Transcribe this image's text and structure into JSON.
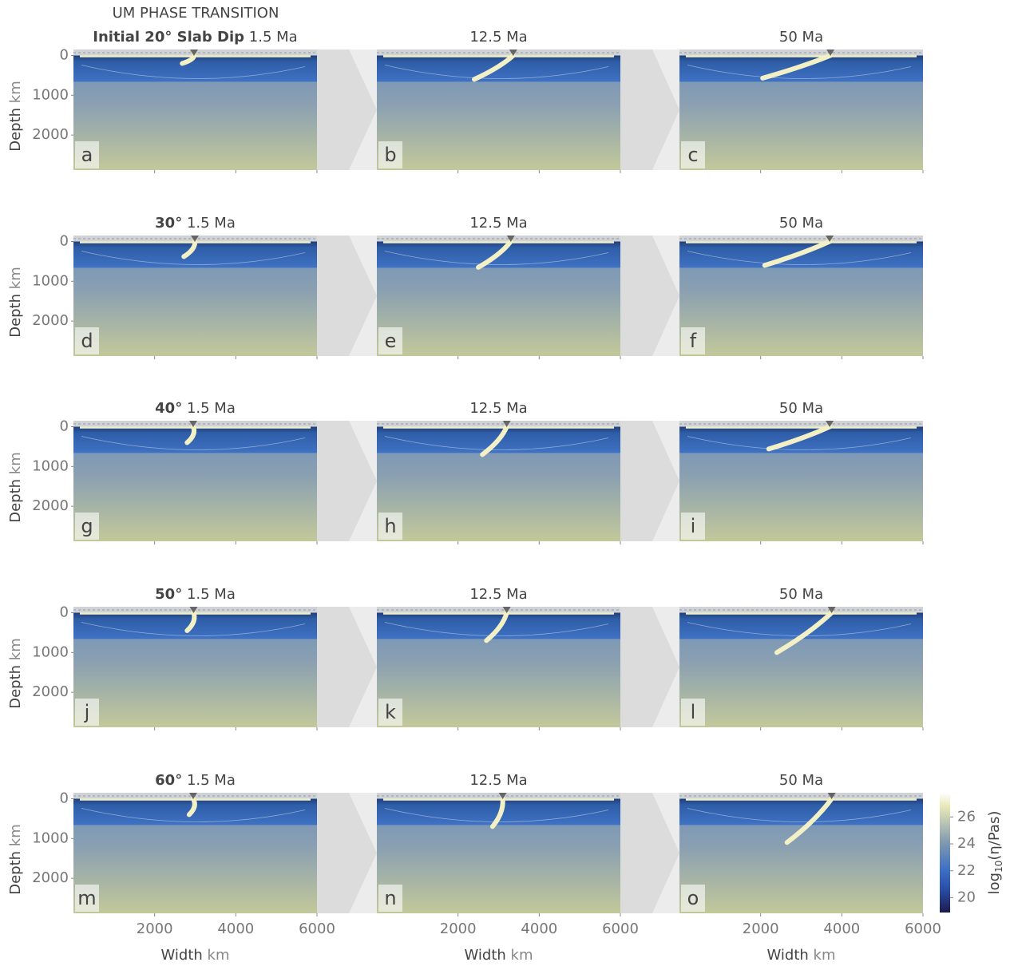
{
  "figure": {
    "title": "UM PHASE TRANSITION",
    "x_label": "Width",
    "x_unit": "km",
    "y_label": "Depth",
    "y_unit": "km",
    "xlim": [
      0,
      6000
    ],
    "xticks": [
      2000,
      4000,
      6000
    ],
    "ylim": [
      -150,
      2880
    ],
    "yticks": [
      0,
      1000,
      2000
    ],
    "rows": [
      {
        "dip": "Initial 20° Slab Dip",
        "panels": [
          {
            "time": "1.5 Ma",
            "letter": "a",
            "trench": 2970,
            "tip": [
              2680,
              200
            ]
          },
          {
            "time": "12.5 Ma",
            "letter": "b",
            "trench": 3360,
            "tip": [
              2400,
              600
            ]
          },
          {
            "time": "50 Ma",
            "letter": "c",
            "trench": 3720,
            "tip": [
              2050,
              570
            ]
          }
        ]
      },
      {
        "dip": "30°",
        "panels": [
          {
            "time": "1.5 Ma",
            "letter": "d",
            "trench": 2990,
            "tip": [
              2720,
              380
            ]
          },
          {
            "time": "12.5 Ma",
            "letter": "e",
            "trench": 3300,
            "tip": [
              2500,
              650
            ]
          },
          {
            "time": "50 Ma",
            "letter": "f",
            "trench": 3700,
            "tip": [
              2100,
              600
            ]
          }
        ]
      },
      {
        "dip": "40°",
        "panels": [
          {
            "time": "1.5 Ma",
            "letter": "g",
            "trench": 2950,
            "tip": [
              2800,
              400
            ]
          },
          {
            "time": "12.5 Ma",
            "letter": "h",
            "trench": 3200,
            "tip": [
              2600,
              700
            ]
          },
          {
            "time": "50 Ma",
            "letter": "i",
            "trench": 3700,
            "tip": [
              2200,
              560
            ]
          }
        ]
      },
      {
        "dip": "50°",
        "panels": [
          {
            "time": "1.5 Ma",
            "letter": "j",
            "trench": 2960,
            "tip": [
              2800,
              450
            ]
          },
          {
            "time": "12.5 Ma",
            "letter": "k",
            "trench": 3200,
            "tip": [
              2700,
              700
            ]
          },
          {
            "time": "50 Ma",
            "letter": "l",
            "trench": 3750,
            "tip": [
              2400,
              1000
            ]
          }
        ]
      },
      {
        "dip": "60°",
        "panels": [
          {
            "time": "1.5 Ma",
            "letter": "m",
            "trench": 2950,
            "tip": [
              2850,
              400
            ]
          },
          {
            "time": "12.5 Ma",
            "letter": "n",
            "trench": 3100,
            "tip": [
              2850,
              700
            ]
          },
          {
            "time": "50 Ma",
            "letter": "o",
            "trench": 3750,
            "tip": [
              2650,
              1100
            ]
          }
        ]
      }
    ],
    "colorbar": {
      "label": [
        "log",
        "10",
        "(η/Pas)"
      ],
      "lim": [
        18.9,
        27.8
      ],
      "ticks": [
        20,
        22,
        24,
        26
      ]
    }
  }
}
